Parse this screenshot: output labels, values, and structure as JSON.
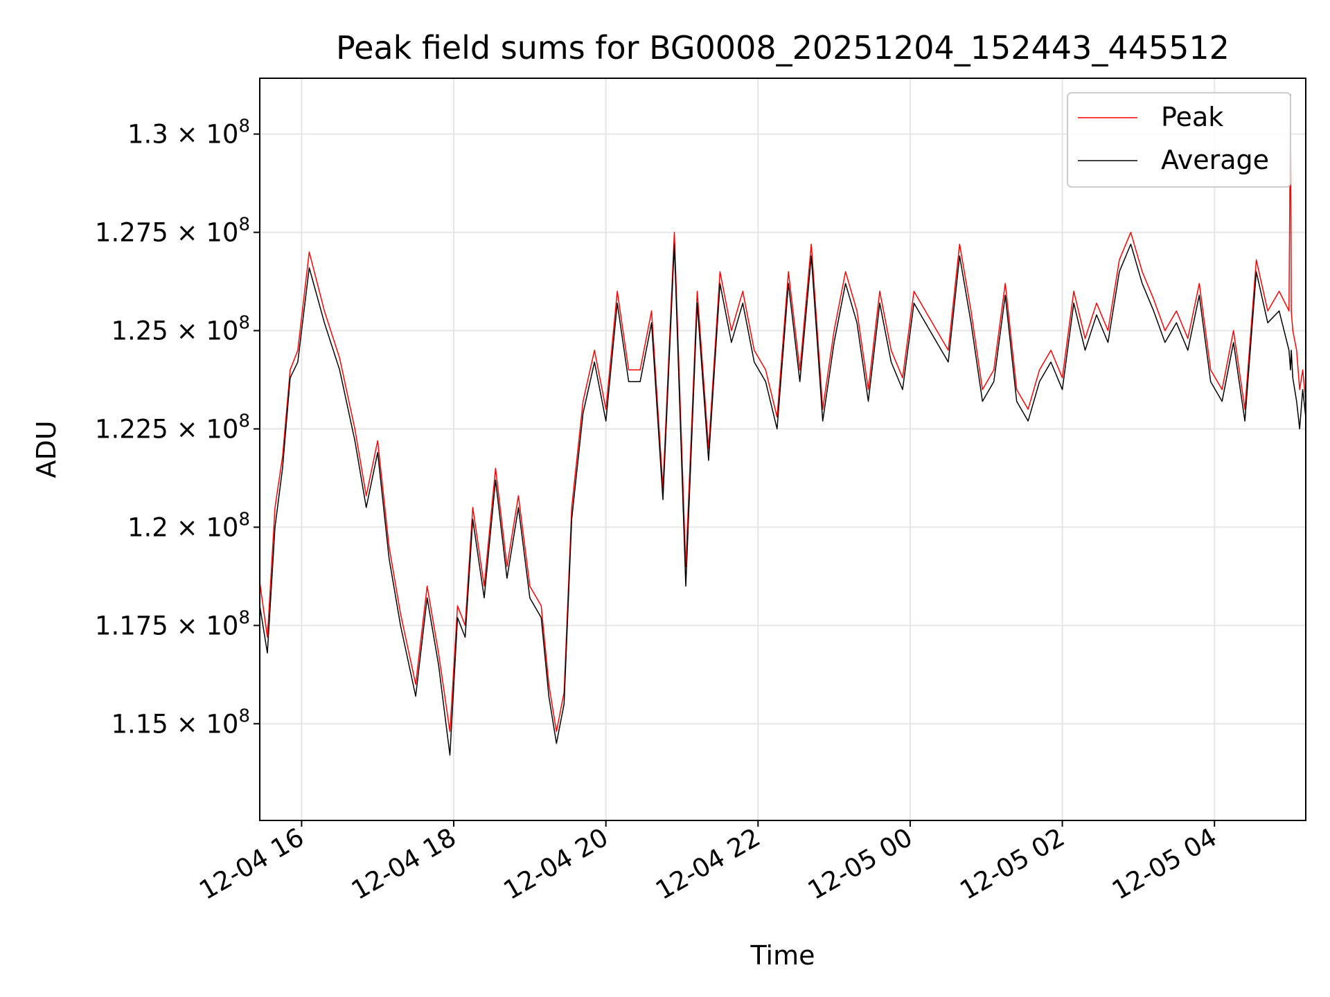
{
  "chart_data": {
    "type": "line",
    "title": "Peak field sums for BG0008_20251204_152443_445512",
    "xlabel": "Time",
    "ylabel": "ADU",
    "x_unit": "hours since 2025-12-04 00:00",
    "xlim": [
      15.45,
      29.2
    ],
    "ylim": [
      112540000.0,
      131420000.0
    ],
    "grid": true,
    "legend_position": "top-right",
    "colors": {
      "peak": "#ff0000",
      "average": "#000000",
      "grid": "#e6e6e6"
    },
    "xticks": [
      {
        "value": 16,
        "label": "12-04 16"
      },
      {
        "value": 18,
        "label": "12-04 18"
      },
      {
        "value": 20,
        "label": "12-04 20"
      },
      {
        "value": 22,
        "label": "12-04 22"
      },
      {
        "value": 24,
        "label": "12-05 00"
      },
      {
        "value": 26,
        "label": "12-05 02"
      },
      {
        "value": 28,
        "label": "12-05 04"
      }
    ],
    "yticks": [
      {
        "value": 115000000.0,
        "mantissa": "1.15"
      },
      {
        "value": 117500000.0,
        "mantissa": "1.175"
      },
      {
        "value": 120000000.0,
        "mantissa": "1.2"
      },
      {
        "value": 122500000.0,
        "mantissa": "1.225"
      },
      {
        "value": 125000000.0,
        "mantissa": "1.25"
      },
      {
        "value": 127500000.0,
        "mantissa": "1.275"
      },
      {
        "value": 130000000.0,
        "mantissa": "1.3"
      }
    ],
    "ytick_multiplier": "× 10",
    "ytick_exponent": "8",
    "series": [
      {
        "name": "Peak",
        "x": [
          15.45,
          15.55,
          15.65,
          15.75,
          15.85,
          15.95,
          16.1,
          16.3,
          16.5,
          16.7,
          16.85,
          17.0,
          17.15,
          17.3,
          17.5,
          17.65,
          17.8,
          17.95,
          18.05,
          18.15,
          18.25,
          18.4,
          18.55,
          18.7,
          18.85,
          19.0,
          19.15,
          19.25,
          19.35,
          19.45,
          19.55,
          19.7,
          19.85,
          20.0,
          20.15,
          20.3,
          20.45,
          20.6,
          20.75,
          20.9,
          21.05,
          21.2,
          21.35,
          21.5,
          21.65,
          21.8,
          21.95,
          22.1,
          22.25,
          22.4,
          22.55,
          22.7,
          22.85,
          23.0,
          23.15,
          23.3,
          23.45,
          23.6,
          23.75,
          23.9,
          24.05,
          24.2,
          24.35,
          24.5,
          24.65,
          24.8,
          24.95,
          25.1,
          25.25,
          25.4,
          25.55,
          25.7,
          25.85,
          26.0,
          26.15,
          26.3,
          26.45,
          26.6,
          26.75,
          26.9,
          27.05,
          27.2,
          27.35,
          27.5,
          27.65,
          27.8,
          27.95,
          28.1,
          28.25,
          28.4,
          28.55,
          28.7,
          28.85,
          28.98,
          29.0,
          29.01,
          29.03,
          29.08,
          29.12,
          29.16,
          29.2
        ],
        "values": [
          118600000.0,
          117200000.0,
          120500000.0,
          121800000.0,
          124000000.0,
          124500000.0,
          127000000.0,
          125500000.0,
          124300000.0,
          122500000.0,
          120800000.0,
          122200000.0,
          119500000.0,
          117800000.0,
          116000000.0,
          118500000.0,
          116800000.0,
          114800000.0,
          118000000.0,
          117500000.0,
          120500000.0,
          118500000.0,
          121500000.0,
          119000000.0,
          120800000.0,
          118500000.0,
          118000000.0,
          116000000.0,
          114800000.0,
          115800000.0,
          120500000.0,
          123200000.0,
          124500000.0,
          123000000.0,
          126000000.0,
          124000000.0,
          124000000.0,
          125500000.0,
          121000000.0,
          127500000.0,
          119000000.0,
          126000000.0,
          122000000.0,
          126500000.0,
          125000000.0,
          126000000.0,
          124500000.0,
          124000000.0,
          122800000.0,
          126500000.0,
          124000000.0,
          127200000.0,
          123000000.0,
          125000000.0,
          126500000.0,
          125500000.0,
          123500000.0,
          126000000.0,
          124500000.0,
          123800000.0,
          126000000.0,
          125500000.0,
          125000000.0,
          124500000.0,
          127200000.0,
          125500000.0,
          123500000.0,
          124000000.0,
          126200000.0,
          123500000.0,
          123000000.0,
          124000000.0,
          124500000.0,
          123800000.0,
          126000000.0,
          124800000.0,
          125700000.0,
          125000000.0,
          126800000.0,
          127500000.0,
          126500000.0,
          125800000.0,
          125000000.0,
          125500000.0,
          124800000.0,
          126200000.0,
          124000000.0,
          123500000.0,
          125000000.0,
          123000000.0,
          126800000.0,
          125500000.0,
          126000000.0,
          125500000.0,
          131000000.0,
          125500000.0,
          125000000.0,
          124500000.0,
          123500000.0,
          124000000.0,
          123200000.0
        ]
      },
      {
        "name": "Average",
        "x": [
          15.45,
          15.55,
          15.65,
          15.75,
          15.85,
          15.95,
          16.1,
          16.3,
          16.5,
          16.7,
          16.85,
          17.0,
          17.15,
          17.3,
          17.5,
          17.65,
          17.8,
          17.95,
          18.05,
          18.15,
          18.25,
          18.4,
          18.55,
          18.7,
          18.85,
          19.0,
          19.15,
          19.25,
          19.35,
          19.45,
          19.55,
          19.7,
          19.85,
          20.0,
          20.15,
          20.3,
          20.45,
          20.6,
          20.75,
          20.9,
          21.05,
          21.2,
          21.35,
          21.5,
          21.65,
          21.8,
          21.95,
          22.1,
          22.25,
          22.4,
          22.55,
          22.7,
          22.85,
          23.0,
          23.15,
          23.3,
          23.45,
          23.6,
          23.75,
          23.9,
          24.05,
          24.2,
          24.35,
          24.5,
          24.65,
          24.8,
          24.95,
          25.1,
          25.25,
          25.4,
          25.55,
          25.7,
          25.85,
          26.0,
          26.15,
          26.3,
          26.45,
          26.6,
          26.75,
          26.9,
          27.05,
          27.2,
          27.35,
          27.5,
          27.65,
          27.8,
          27.95,
          28.1,
          28.25,
          28.4,
          28.55,
          28.7,
          28.85,
          28.98,
          29.0,
          29.01,
          29.03,
          29.08,
          29.12,
          29.16,
          29.2
        ],
        "values": [
          118000000.0,
          116800000.0,
          120000000.0,
          121500000.0,
          123800000.0,
          124200000.0,
          126600000.0,
          125200000.0,
          124000000.0,
          122200000.0,
          120500000.0,
          121900000.0,
          119200000.0,
          117500000.0,
          115700000.0,
          118200000.0,
          116500000.0,
          114200000.0,
          117700000.0,
          117200000.0,
          120200000.0,
          118200000.0,
          121200000.0,
          118700000.0,
          120500000.0,
          118200000.0,
          117700000.0,
          115700000.0,
          114500000.0,
          115500000.0,
          120200000.0,
          122900000.0,
          124200000.0,
          122700000.0,
          125700000.0,
          123700000.0,
          123700000.0,
          125200000.0,
          120700000.0,
          127200000.0,
          118500000.0,
          125700000.0,
          121700000.0,
          126200000.0,
          124700000.0,
          125700000.0,
          124200000.0,
          123700000.0,
          122500000.0,
          126200000.0,
          123700000.0,
          126900000.0,
          122700000.0,
          124700000.0,
          126200000.0,
          125200000.0,
          123200000.0,
          125700000.0,
          124200000.0,
          123500000.0,
          125700000.0,
          125200000.0,
          124700000.0,
          124200000.0,
          126900000.0,
          125200000.0,
          123200000.0,
          123700000.0,
          125900000.0,
          123200000.0,
          122700000.0,
          123700000.0,
          124200000.0,
          123500000.0,
          125700000.0,
          124500000.0,
          125400000.0,
          124700000.0,
          126500000.0,
          127200000.0,
          126200000.0,
          125500000.0,
          124700000.0,
          125200000.0,
          124500000.0,
          125900000.0,
          123700000.0,
          123200000.0,
          124700000.0,
          122700000.0,
          126500000.0,
          125200000.0,
          125500000.0,
          124500000.0,
          124000000.0,
          124500000.0,
          123800000.0,
          123200000.0,
          122500000.0,
          123500000.0,
          122800000.0
        ]
      }
    ]
  }
}
